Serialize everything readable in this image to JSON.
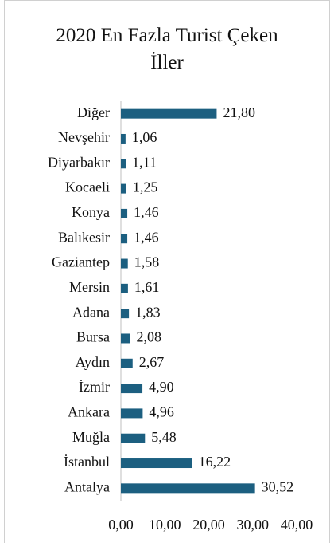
{
  "chart_data": {
    "type": "barh",
    "title": "2020 En Fazla Turist Çeken İller",
    "categories": [
      "Diğer",
      "Nevşehir",
      "Diyarbakır",
      "Kocaeli",
      "Konya",
      "Balıkesir",
      "Gaziantep",
      "Mersin",
      "Adana",
      "Bursa",
      "Aydın",
      "İzmir",
      "Ankara",
      "Muğla",
      "İstanbul",
      "Antalya"
    ],
    "values": [
      21.8,
      1.06,
      1.11,
      1.25,
      1.46,
      1.46,
      1.58,
      1.61,
      1.83,
      2.08,
      2.67,
      4.9,
      4.96,
      5.48,
      16.22,
      30.52
    ],
    "value_labels": [
      "21,80",
      "1,06",
      "1,11",
      "1,25",
      "1,46",
      "1,46",
      "1,58",
      "1,61",
      "1,83",
      "2,08",
      "2,67",
      "4,90",
      "4,96",
      "5,48",
      "16,22",
      "30,52"
    ],
    "color": "#1c5f80",
    "xlim": [
      0,
      40
    ],
    "xticks": [
      {
        "value": 0,
        "label": "0,00"
      },
      {
        "value": 10,
        "label": "10,00"
      },
      {
        "value": 20,
        "label": "20,00"
      },
      {
        "value": 30,
        "label": "30,00"
      },
      {
        "value": 40,
        "label": "40,00"
      }
    ],
    "grid": false
  }
}
